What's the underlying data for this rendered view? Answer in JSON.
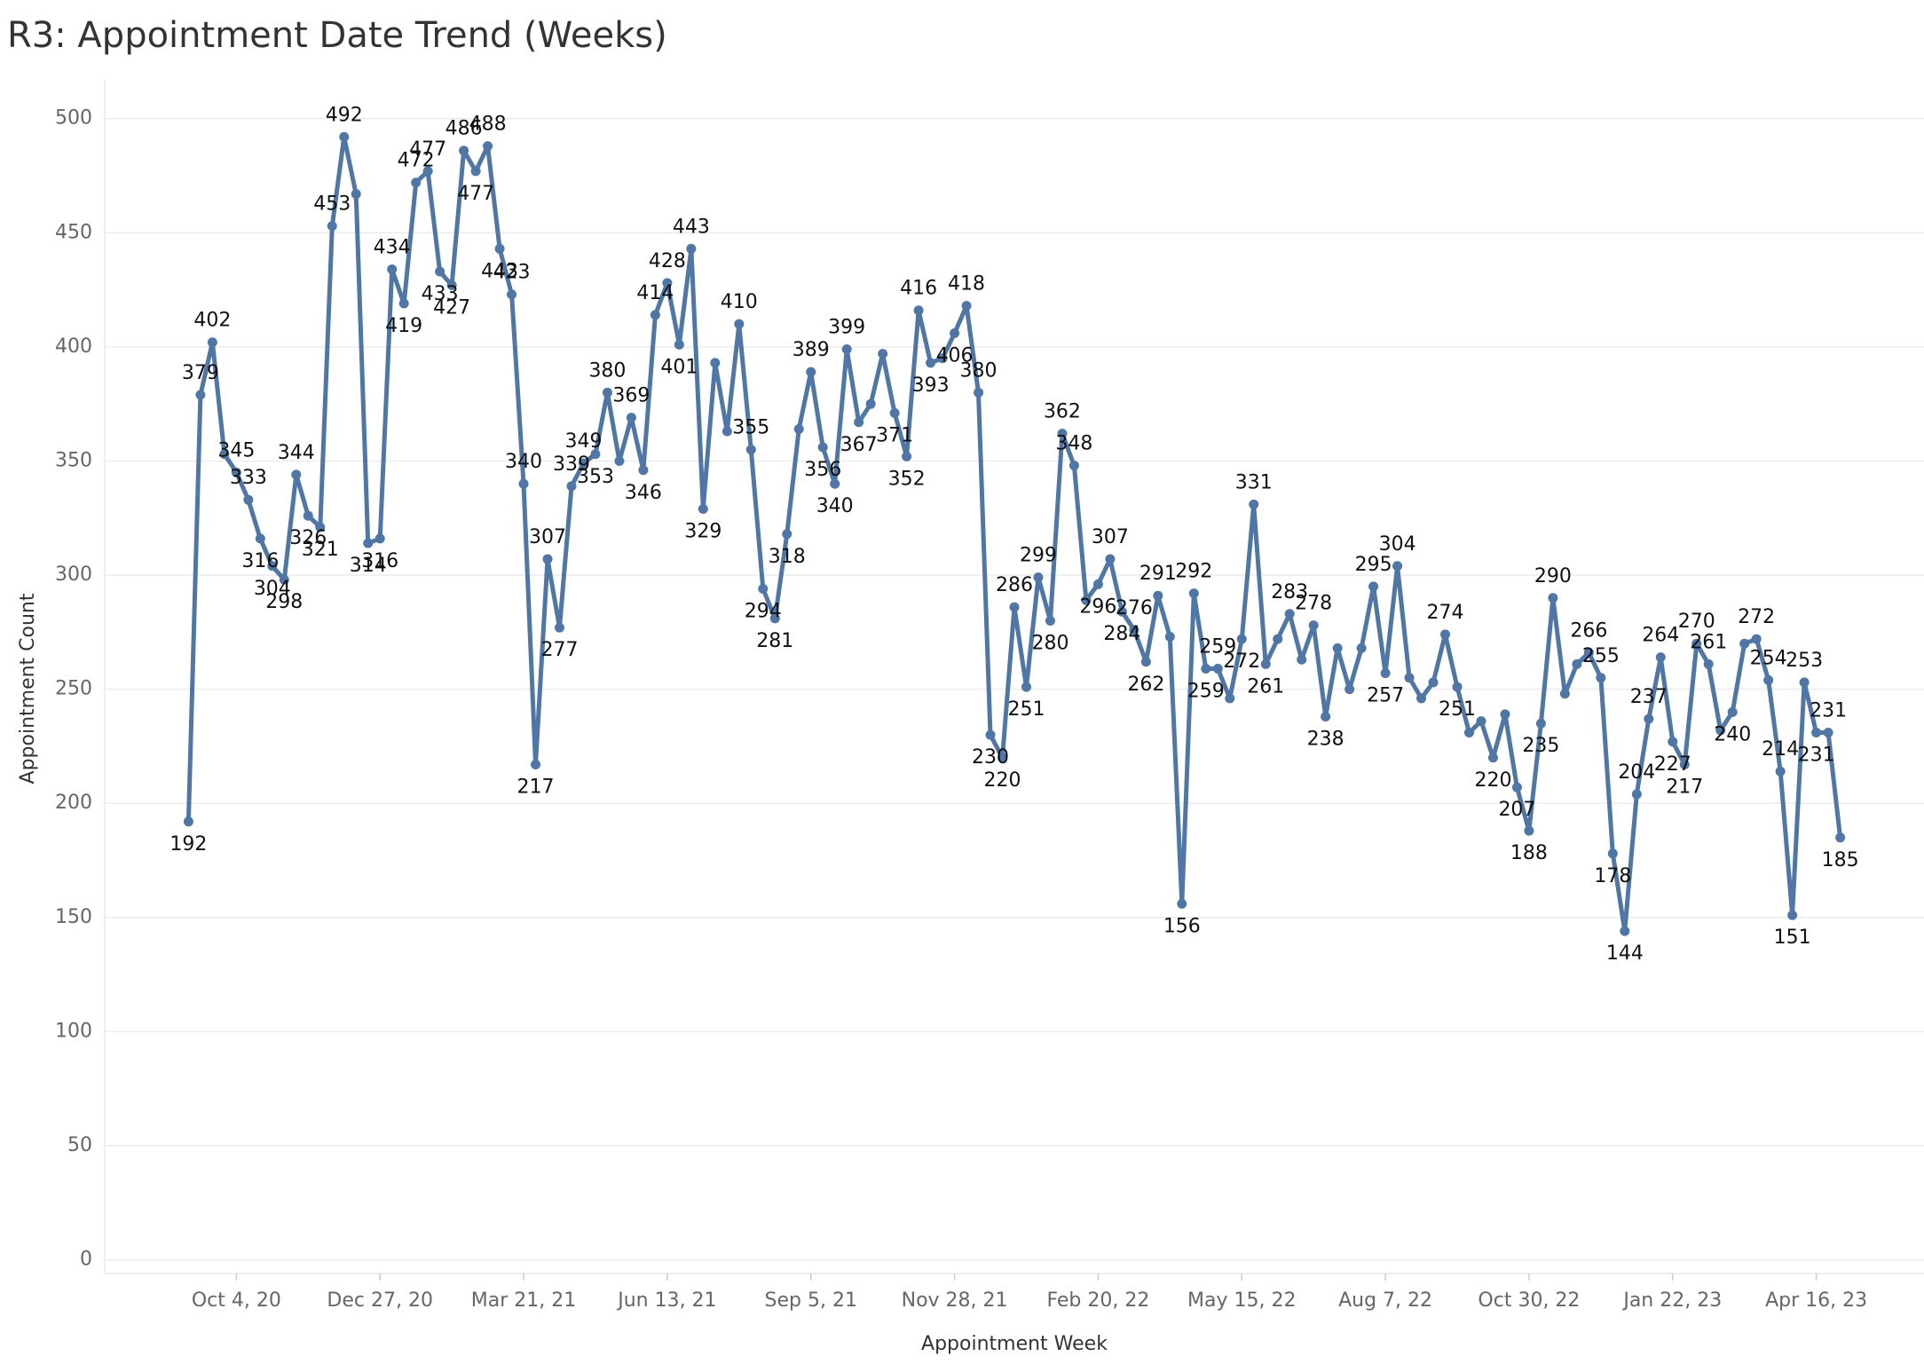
{
  "chart_data": {
    "type": "line",
    "title": "R3: Appointment Date Trend (Weeks)",
    "x_label": "Appointment Week",
    "y_label": "Appointment Count",
    "x": [
      "2020-09-06",
      "2020-09-13",
      "2020-09-20",
      "2020-09-27",
      "2020-10-04",
      "2020-10-11",
      "2020-10-18",
      "2020-10-25",
      "2020-11-01",
      "2020-11-08",
      "2020-11-15",
      "2020-11-22",
      "2020-11-29",
      "2020-12-06",
      "2020-12-13",
      "2020-12-20",
      "2020-12-27",
      "2021-01-03",
      "2021-01-10",
      "2021-01-17",
      "2021-01-24",
      "2021-01-31",
      "2021-02-07",
      "2021-02-14",
      "2021-02-21",
      "2021-02-28",
      "2021-03-07",
      "2021-03-14",
      "2021-03-21",
      "2021-03-28",
      "2021-04-04",
      "2021-04-11",
      "2021-04-18",
      "2021-04-25",
      "2021-05-02",
      "2021-05-09",
      "2021-05-16",
      "2021-05-23",
      "2021-05-30",
      "2021-06-06",
      "2021-06-13",
      "2021-06-20",
      "2021-06-27",
      "2021-07-04",
      "2021-07-11",
      "2021-07-18",
      "2021-07-25",
      "2021-08-01",
      "2021-08-08",
      "2021-08-15",
      "2021-08-22",
      "2021-08-29",
      "2021-09-05",
      "2021-09-12",
      "2021-09-19",
      "2021-09-26",
      "2021-10-03",
      "2021-10-10",
      "2021-10-17",
      "2021-10-24",
      "2021-10-31",
      "2021-11-07",
      "2021-11-14",
      "2021-11-21",
      "2021-11-28",
      "2021-12-05",
      "2021-12-12",
      "2021-12-19",
      "2021-12-26",
      "2022-01-02",
      "2022-01-09",
      "2022-01-16",
      "2022-01-23",
      "2022-01-30",
      "2022-02-06",
      "2022-02-13",
      "2022-02-20",
      "2022-02-27",
      "2022-03-06",
      "2022-03-13",
      "2022-03-20",
      "2022-03-27",
      "2022-04-03",
      "2022-04-10",
      "2022-04-17",
      "2022-04-24",
      "2022-05-01",
      "2022-05-08",
      "2022-05-15",
      "2022-05-22",
      "2022-05-29",
      "2022-06-05",
      "2022-06-12",
      "2022-06-19",
      "2022-06-26",
      "2022-07-03",
      "2022-07-10",
      "2022-07-17",
      "2022-07-24",
      "2022-07-31",
      "2022-08-07",
      "2022-08-14",
      "2022-08-21",
      "2022-08-28",
      "2022-09-04",
      "2022-09-11",
      "2022-09-18",
      "2022-09-25",
      "2022-10-02",
      "2022-10-09",
      "2022-10-16",
      "2022-10-23",
      "2022-10-30",
      "2022-11-06",
      "2022-11-13",
      "2022-11-20",
      "2022-11-27",
      "2022-12-04",
      "2022-12-11",
      "2022-12-18",
      "2022-12-25",
      "2023-01-01",
      "2023-01-08",
      "2023-01-15",
      "2023-01-22",
      "2023-01-29",
      "2023-02-05",
      "2023-02-12",
      "2023-02-19",
      "2023-02-26",
      "2023-03-05",
      "2023-03-12",
      "2023-03-19",
      "2023-03-26",
      "2023-04-02",
      "2023-04-09",
      "2023-04-16",
      "2023-04-23",
      "2023-04-30"
    ],
    "series": [
      {
        "name": "Appointment Count",
        "color": "#4e76a6",
        "values": [
          192,
          379,
          402,
          353,
          345,
          333,
          316,
          304,
          298,
          344,
          326,
          321,
          453,
          492,
          467,
          314,
          316,
          434,
          419,
          472,
          477,
          433,
          427,
          486,
          477,
          488,
          443,
          423,
          340,
          217,
          307,
          277,
          339,
          349,
          353,
          380,
          350,
          369,
          346,
          414,
          428,
          401,
          443,
          329,
          393,
          363,
          410,
          355,
          294,
          281,
          318,
          364,
          389,
          356,
          340,
          399,
          367,
          375,
          397,
          371,
          352,
          416,
          393,
          395,
          406,
          418,
          380,
          230,
          220,
          286,
          251,
          299,
          280,
          362,
          348,
          289,
          296,
          307,
          284,
          276,
          262,
          291,
          273,
          156,
          292,
          259,
          259,
          246,
          272,
          331,
          261,
          272,
          283,
          263,
          278,
          238,
          268,
          250,
          268,
          295,
          257,
          304,
          255,
          246,
          253,
          274,
          251,
          231,
          236,
          220,
          239,
          207,
          188,
          235,
          290,
          248,
          261,
          266,
          255,
          178,
          144,
          204,
          237,
          264,
          227,
          217,
          270,
          261,
          232,
          240,
          270,
          272,
          254,
          214,
          151,
          253,
          231,
          231,
          185
        ],
        "value_labels": [
          192,
          379,
          402,
          null,
          345,
          333,
          316,
          304,
          298,
          344,
          326,
          321,
          453,
          492,
          null,
          314,
          316,
          434,
          419,
          472,
          477,
          433,
          427,
          486,
          477,
          488,
          443,
          423,
          340,
          217,
          307,
          277,
          339,
          349,
          353,
          380,
          null,
          369,
          346,
          414,
          428,
          401,
          443,
          329,
          null,
          null,
          410,
          355,
          294,
          281,
          318,
          null,
          389,
          356,
          340,
          399,
          367,
          null,
          null,
          371,
          352,
          416,
          393,
          null,
          406,
          418,
          380,
          230,
          220,
          286,
          251,
          299,
          280,
          362,
          348,
          null,
          296,
          307,
          284,
          276,
          262,
          291,
          null,
          156,
          292,
          259,
          259,
          null,
          272,
          331,
          261,
          null,
          283,
          null,
          278,
          238,
          null,
          null,
          null,
          295,
          257,
          304,
          null,
          null,
          null,
          274,
          251,
          null,
          null,
          220,
          null,
          207,
          188,
          235,
          290,
          null,
          null,
          266,
          255,
          178,
          144,
          204,
          237,
          264,
          227,
          217,
          270,
          261,
          null,
          240,
          null,
          272,
          254,
          214,
          151,
          253,
          231,
          231,
          185
        ]
      }
    ],
    "xlim": [
      "2020-07-19",
      "2023-06-18"
    ],
    "xticks": [
      {
        "value": "2020-10-04",
        "label": "Oct 4, 20"
      },
      {
        "value": "2020-12-27",
        "label": "Dec 27, 20"
      },
      {
        "value": "2021-03-21",
        "label": "Mar 21, 21"
      },
      {
        "value": "2021-06-13",
        "label": "Jun 13, 21"
      },
      {
        "value": "2021-09-05",
        "label": "Sep 5, 21"
      },
      {
        "value": "2021-11-28",
        "label": "Nov 28, 21"
      },
      {
        "value": "2022-02-20",
        "label": "Feb 20, 22"
      },
      {
        "value": "2022-05-15",
        "label": "May 15, 22"
      },
      {
        "value": "2022-08-07",
        "label": "Aug 7, 22"
      },
      {
        "value": "2022-10-30",
        "label": "Oct 30, 22"
      },
      {
        "value": "2023-01-22",
        "label": "Jan 22, 23"
      },
      {
        "value": "2023-04-16",
        "label": "Apr 16, 23"
      }
    ],
    "ylim": [
      -6,
      517
    ],
    "yticks": [
      0,
      50,
      100,
      150,
      200,
      250,
      300,
      350,
      400,
      450,
      500
    ],
    "grid": true
  }
}
